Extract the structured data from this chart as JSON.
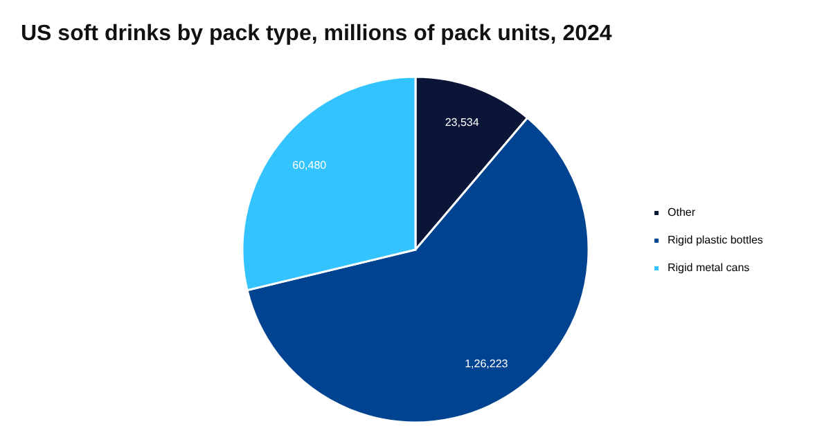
{
  "chart_data": {
    "type": "pie",
    "title": "US soft drinks by pack type, millions of pack units, 2024",
    "categories": [
      "Other",
      "Rigid plastic bottles",
      "Rigid metal cans"
    ],
    "values": [
      23534,
      126223,
      60480
    ],
    "value_labels": [
      "23,534",
      "1,26,223",
      "60,480"
    ],
    "colors": [
      "#0b1538",
      "#004390",
      "#33c3ff"
    ],
    "legend": "right"
  }
}
